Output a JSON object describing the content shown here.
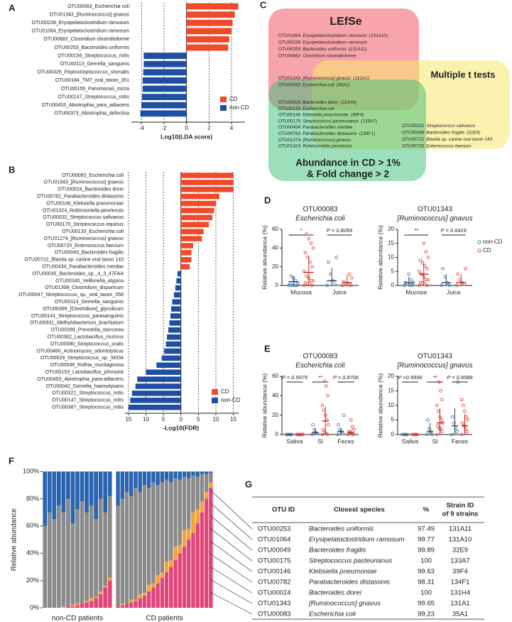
{
  "panel_labels": [
    "A",
    "B",
    "C",
    "D",
    "E",
    "F",
    "G"
  ],
  "chart_data": [
    {
      "type": "hbar",
      "xlabel": "Log10(LDA score)",
      "xlim": [
        -4.9,
        5.2
      ],
      "xticks": [
        -4,
        -2,
        0,
        2,
        4
      ],
      "grid": "dotted",
      "legend": "bottom-right",
      "categories": [
        "OTU00083_Escherichia coli",
        "OTU01343_[Ruminococcus] gnavus",
        "OTU00239_Erysipelatoclostridium ramosum",
        "OTU01064_Erysipelatoclostridium ramosum",
        "OTU00682_Clostridium clostridioforme",
        "OTU00253_Bacteroides uniformis",
        "OTU00156_Streptococcus_mitis",
        "OTU00113_Gemella_sanguinis",
        "OTU00326_Peptostreptococcus_stomatis",
        "OTU00184_TM7_oral_taxon_351",
        "OTU00155_Parvimonas_micra",
        "OTU00147_Streptococcus_mitis",
        "OTU00453_Abiotrophia_para_adiacens",
        "OTU00373_Abiotrophia_defectiva"
      ],
      "series": [
        {
          "name": "CD",
          "color": "#f04a2a",
          "values": [
            4.6,
            4.3,
            4.1,
            4.0,
            3.8,
            3.7,
            null,
            null,
            null,
            null,
            null,
            null,
            null,
            null
          ]
        },
        {
          "name": "non-CD",
          "color": "#1f4ea3",
          "values": [
            null,
            null,
            null,
            null,
            null,
            null,
            -3.8,
            -3.8,
            -3.85,
            -3.9,
            -3.9,
            -3.95,
            -4.0,
            -4.1
          ]
        }
      ]
    },
    {
      "type": "hbar",
      "xlabel": "-Log10(FDR)",
      "xlim": [
        -16,
        16.5
      ],
      "xticks": [
        {
          "value": -15,
          "label": "15"
        },
        {
          "value": -10,
          "label": "10"
        },
        {
          "value": -5,
          "label": "5"
        },
        0,
        5,
        10,
        15
      ],
      "grid": "dotted",
      "legend": "bottom-right",
      "categories": [
        "OTU00083_Escherichia coli",
        "OTU01343_[Ruminococcus] gnavus",
        "OTU00024_Bacteroides dorei",
        "OTU00782_Parabacteroides distasonis",
        "OTU00146_Klebsiella pneumoniae",
        "OTU01424_Robinsoniella peoriensis",
        "OTU00032_Streptococcus salivarius",
        "OTU00175_Streptococcus equinus",
        "OTU00133_Escherichia coli",
        "OTU01274_[Ruminococcus] gnavus",
        "OTU00725_Enterococcus faecium",
        "OTU00049_Bacteroides fragilis",
        "OTU00722_Blautia sp. canine oral taxon 143",
        "OTU00434_Parabacteroides merdae",
        "OTU00035_Bacteroides_sp._4_3_47FAA",
        "OTU00340_Veillonella_atypica",
        "OTU01308_Clostridium_disporicum",
        "OTU00047_Streptococcus_sp._oral_taxon_058",
        "OTU00113_Gemella_sanguinis",
        "OTU00399_[Clostridium]_glycolicum",
        "OTU00141_Streptococcus_parasanguinis",
        "OTU00931_Methylobacterium_brachiatum",
        "OTU00289_Prevotella_stercorea",
        "OTU00382_Lactobacillus_murinus",
        "OTU00080_Streptococcus_oralis",
        "OTU00460_Actinomyces_odontolyticus",
        "OTU00629_Streptococcus_sp._M334",
        "OTU00548_Rothia_mucilaginosa",
        "OTU00153_Lactobacillus_johnsonii",
        "OTU00453_Abiotrophia_para-adiacens",
        "OTU00042_Gemella_haemolysans",
        "OTU00321_Streptococcus_mitis",
        "OTU00147_Streptococcus_mitis",
        "OTU00387_Streptococcus_mitis"
      ],
      "series": [
        {
          "name": "CD",
          "color": "#f04a2a",
          "values": [
            15,
            15,
            15,
            11,
            10,
            9.5,
            9,
            8,
            6.5,
            6,
            3.5,
            3,
            3,
            2.5,
            null,
            null,
            null,
            null,
            null,
            null,
            null,
            null,
            null,
            null,
            null,
            null,
            null,
            null,
            null,
            null,
            null,
            null,
            null,
            null
          ]
        },
        {
          "name": "non-CD",
          "color": "#1f4ea3",
          "values": [
            null,
            null,
            null,
            null,
            null,
            null,
            null,
            null,
            null,
            null,
            null,
            null,
            null,
            null,
            -1,
            -1.3,
            -1.6,
            -2,
            -2.5,
            -2.8,
            -3,
            -3.3,
            -3.6,
            -4,
            -4.3,
            -4.8,
            -5.5,
            -7,
            -10,
            -12.5,
            -13,
            -14,
            -14.5,
            -15
          ]
        }
      ]
    },
    {
      "type": "strip",
      "title": "OTU00083",
      "subtitle": "Escherichia coli",
      "ylabel": "Relative abundance (%)",
      "categories": [
        "Mucosa",
        "Juice"
      ],
      "ylim": [
        0,
        60
      ],
      "yticks": [
        0,
        20,
        40,
        60
      ],
      "annotations": [
        "*",
        "P = 0.8059"
      ],
      "series": [
        {
          "color": "#3b7dc4",
          "points": [
            [
              0,
              0,
              0,
              0,
              1,
              2,
              5,
              8,
              10
            ],
            [
              0,
              1,
              5,
              12,
              25,
              30
            ]
          ],
          "mean": [
            4,
            5
          ],
          "sd": [
            6,
            14
          ]
        },
        {
          "color": "#e8463a",
          "points": [
            [
              0,
              0,
              1,
              2,
              3,
              5,
              5,
              8,
              10,
              15,
              20,
              25,
              30,
              35,
              40,
              45,
              50,
              55
            ],
            [
              0,
              0,
              1,
              2,
              4,
              8,
              12
            ]
          ],
          "mean": [
            14,
            3
          ],
          "sd": [
            18,
            8
          ]
        }
      ]
    },
    {
      "type": "strip",
      "title": "OTU01343",
      "subtitle": "[Ruminococcus] gnavus",
      "ylabel": "Relative abundance (%)",
      "categories": [
        "Mucosa",
        "Juice"
      ],
      "ylim": [
        0,
        20
      ],
      "yticks": [
        0,
        5,
        10,
        15,
        20
      ],
      "annotations": [
        "**",
        "P = 0.6416"
      ],
      "legend": "right",
      "series": [
        {
          "name": "non-CD",
          "color": "#3b7dc4",
          "points": [
            [
              0,
              0,
              0,
              0.5,
              1,
              1,
              2,
              4
            ],
            [
              0,
              0,
              1,
              3,
              6
            ]
          ],
          "mean": [
            1,
            1
          ],
          "sd": [
            2,
            3
          ]
        },
        {
          "name": "CD",
          "color": "#e8463a",
          "points": [
            [
              0,
              0,
              0.5,
              1,
              1,
              2,
              2,
              3,
              4,
              5,
              6,
              7,
              8,
              9,
              10,
              12,
              15
            ],
            [
              0,
              0.5,
              1,
              2,
              4,
              6
            ]
          ],
          "mean": [
            4,
            1
          ],
          "sd": [
            4,
            3
          ]
        }
      ]
    },
    {
      "type": "strip",
      "title": "OTU00083",
      "subtitle": "Escherichia coli",
      "ylabel": "Relative abundance (%)",
      "categories": [
        "Saliva",
        "SI",
        "Feces"
      ],
      "ylim": [
        0,
        60
      ],
      "yticks": [
        0,
        20,
        40,
        60
      ],
      "annotations": [
        "P = 0.9979",
        "**",
        "P = 0.8706"
      ],
      "series": [
        {
          "color": "#3b7dc4",
          "points": [
            [
              0,
              0,
              0,
              0,
              0
            ],
            [
              0,
              1,
              2,
              5,
              10
            ],
            [
              0,
              1,
              3,
              5,
              10,
              20
            ]
          ],
          "mean": [
            0,
            2,
            3
          ],
          "sd": [
            0.3,
            5,
            4
          ]
        },
        {
          "color": "#e8463a",
          "points": [
            [
              0,
              0,
              0,
              0,
              0,
              0
            ],
            [
              0,
              0,
              1,
              2,
              5,
              10,
              15,
              20,
              25,
              30,
              40,
              50,
              55
            ],
            [
              0,
              0,
              1,
              2,
              3,
              5,
              8,
              15
            ]
          ],
          "mean": [
            0,
            14,
            2
          ],
          "sd": [
            0.3,
            15,
            3
          ]
        }
      ]
    },
    {
      "type": "strip",
      "title": "OTU01343",
      "subtitle": "[Ruminococcus] gnavus",
      "ylabel": "Relative abundance (%)",
      "categories": [
        "Saliva",
        "SI",
        "Feces"
      ],
      "ylim": [
        0,
        20
      ],
      "yticks": [
        0,
        5,
        10,
        15,
        20
      ],
      "annotations": [
        "P >0.9999",
        "**",
        "P = 0.8588"
      ],
      "series": [
        {
          "color": "#3b7dc4",
          "points": [
            [
              0,
              0,
              0,
              0
            ],
            [
              0,
              0,
              1,
              2,
              5
            ],
            [
              0,
              1,
              2,
              4,
              6,
              18
            ]
          ],
          "mean": [
            0,
            1,
            3
          ],
          "sd": [
            0.1,
            3,
            6
          ]
        },
        {
          "color": "#e8463a",
          "points": [
            [
              0,
              0,
              0,
              0
            ],
            [
              0,
              1,
              2,
              2,
              3,
              4,
              5,
              6,
              8,
              10,
              12,
              15,
              18
            ],
            [
              0,
              1,
              2,
              3,
              4,
              5,
              6,
              8,
              10,
              12
            ]
          ],
          "mean": [
            0,
            4,
            3
          ],
          "sd": [
            0.1,
            5,
            4
          ]
        }
      ]
    },
    {
      "type": "stacked_bar",
      "ylabel": "Relative abundance",
      "xlabel": "non-CD patients",
      "ylim": [
        0,
        100
      ],
      "yticks": [
        {
          "value": 0,
          "label": "0%"
        },
        {
          "value": 20,
          "label": "20%"
        },
        {
          "value": 40,
          "label": "40%"
        },
        {
          "value": 60,
          "label": "60%"
        },
        {
          "value": 80,
          "label": "80%"
        },
        {
          "value": 100,
          "label": "100%"
        }
      ],
      "categories": [
        null,
        null,
        null,
        null,
        null,
        null,
        null,
        null,
        null,
        null,
        null,
        null,
        null,
        null,
        null
      ],
      "series": [
        {
          "color": "#e0457b",
          "values": [
            0,
            0,
            0,
            0,
            0,
            1,
            1,
            2,
            3,
            4,
            5,
            7,
            10,
            15,
            20
          ]
        },
        {
          "color": "#f2a33a",
          "values": [
            0,
            0,
            0,
            0,
            1,
            0,
            1,
            1,
            0,
            1,
            2,
            1,
            2,
            1,
            2
          ]
        },
        {
          "color": "#8a8a8a",
          "values": [
            60,
            70,
            65,
            75,
            69,
            79,
            60,
            69,
            75,
            65,
            68,
            57,
            68,
            54,
            60
          ]
        },
        {
          "color": "#2a64b0",
          "values": [
            40,
            30,
            35,
            25,
            30,
            20,
            38,
            28,
            22,
            30,
            25,
            35,
            20,
            30,
            18
          ]
        }
      ]
    },
    {
      "type": "stacked_bar",
      "xlabel": "CD patients",
      "ylim": [
        0,
        100
      ],
      "categories": [
        null,
        null,
        null,
        null,
        null,
        null,
        null,
        null,
        null,
        null,
        null,
        null,
        null,
        null,
        null,
        null,
        null,
        null,
        null,
        null,
        null,
        null
      ],
      "series": [
        {
          "color": "#e0457b",
          "values": [
            1,
            2,
            3,
            4,
            5,
            7,
            9,
            12,
            15,
            18,
            22,
            26,
            30,
            35,
            40,
            45,
            50,
            55,
            62,
            70,
            80,
            88
          ]
        },
        {
          "color": "#f2a33a",
          "values": [
            0,
            1,
            0,
            2,
            1,
            3,
            2,
            5,
            3,
            6,
            4,
            8,
            5,
            10,
            6,
            12,
            8,
            15,
            10,
            8,
            5,
            4
          ]
        },
        {
          "color": "#8a8a8a",
          "values": [
            74,
            77,
            82,
            76,
            82,
            75,
            79,
            71,
            74,
            66,
            66,
            60,
            57,
            50,
            48,
            39,
            37,
            27,
            24,
            20,
            13,
            7
          ]
        },
        {
          "color": "#2a64b0",
          "values": [
            25,
            20,
            15,
            18,
            12,
            15,
            10,
            12,
            8,
            10,
            8,
            6,
            8,
            5,
            6,
            4,
            5,
            3,
            4,
            2,
            2,
            1
          ]
        }
      ]
    }
  ],
  "venn": {
    "sets": [
      "LEfSe",
      "Multiple t tests",
      [
        "Abundance in CD > 1%",
        "& Fold change > 2"
      ]
    ],
    "regions": {
      "lefse_only": [
        {
          "otu": "OTU01064",
          "species": "Erysipelatoclostridium ramosum",
          "strain": "(131A10)"
        },
        {
          "otu": "OTU00239",
          "species": "Erysipelatoclostridium ramosum"
        },
        {
          "otu": "OTU00253",
          "species": "Bacteroides uniformis",
          "strain": "(131A11)"
        },
        {
          "otu": "OTU00682",
          "species": "Clostridium clostridioforme"
        }
      ],
      "all_three": [
        {
          "otu": "OTU01343",
          "species": "[Ruminococcus] gnavus",
          "strain": "(131A1)"
        },
        {
          "otu": "OTU00083",
          "species": "Escherichia coli",
          "strain": "(35A1)"
        }
      ],
      "ttest_abundance": [
        {
          "otu": "OTU00024",
          "species": "Bacteroides dorei",
          "strain": "(131H4)"
        },
        {
          "otu": "OTU00133",
          "species": "Escherichia coli"
        },
        {
          "otu": "OTU00146",
          "species": "Klebsiella pneumoniae",
          "strain": "(39F4)"
        },
        {
          "otu": "OTU00175",
          "species": "Streptococcus pasteurianus",
          "strain": "(133A7)"
        },
        {
          "otu": "OTU00434",
          "species": "Parabacteroides merdae"
        },
        {
          "otu": "OTU00782",
          "species": "Parabacteroides distasonis",
          "strain": "(134F1)"
        },
        {
          "otu": "OTU01274",
          "species": "[Ruminococcus] gnavus"
        },
        {
          "otu": "OTU01424",
          "species": "Robinsoniella peoriensis"
        }
      ],
      "ttest_only": [
        {
          "otu": "OTU00032",
          "species": "Streptococcus salivarius"
        },
        {
          "otu": "OTU00049",
          "species": "Bacteroides fragilis",
          "strain": "(32E9)"
        },
        {
          "otu": "OTU00722",
          "species": "Blautia sp. canine oral taxon 143"
        },
        {
          "otu": "OTU00725",
          "species": "Enterococcus faecium"
        }
      ]
    }
  },
  "table": {
    "header": [
      [
        "OTU ID"
      ],
      [
        "Closest species"
      ],
      [
        "%"
      ],
      [
        "Strain ID",
        "of 9 strains"
      ]
    ],
    "rows": [
      [
        "OTU00253",
        "Bacteroides uniformis",
        97.49,
        "131A11"
      ],
      [
        "OTU01064",
        "Erysipelatoclostridium ramosum",
        99.77,
        "131A10"
      ],
      [
        "OTU00049",
        "Bacteroides fragilis",
        99.89,
        "32E9"
      ],
      [
        "OTU00175",
        "Streptococcus pasteurianus",
        100,
        "133A7"
      ],
      [
        "OTU00146",
        "Klebsiella pneumoniae",
        99.63,
        "39F4"
      ],
      [
        "OTU00782",
        "Parabacteroides distasonis",
        98.31,
        "134F1"
      ],
      [
        "OTU00024",
        "Bacteroides dorei",
        100,
        "131H4"
      ],
      [
        "OTU01343",
        "[Ruminococcus] gnavus",
        99.65,
        "131A1"
      ],
      [
        "OTU00083",
        "Escherichia coli",
        99.23,
        "35A1"
      ]
    ]
  }
}
